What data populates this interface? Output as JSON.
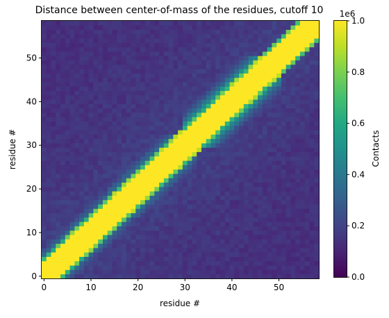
{
  "chart_data": {
    "type": "heatmap",
    "title": "Distance between center-of-mass of the residues, cutoff 10",
    "xlabel": "residue #",
    "ylabel": "residue #",
    "n_residues": 59,
    "xlim": [
      -0.5,
      58.5
    ],
    "ylim": [
      -0.5,
      58.5
    ],
    "x_ticks": [
      0,
      10,
      20,
      30,
      40,
      50
    ],
    "y_ticks": [
      0,
      10,
      20,
      30,
      40,
      50
    ],
    "x_tick_labels": [
      "0",
      "10",
      "20",
      "30",
      "40",
      "50"
    ],
    "y_tick_labels": [
      "0",
      "10",
      "20",
      "30",
      "40",
      "50"
    ],
    "colormap": "viridis",
    "colorbar": {
      "label": "Contacts",
      "range": [
        0.0,
        1.0
      ],
      "ticks": [
        0.0,
        0.2,
        0.4,
        0.6,
        0.8,
        1.0
      ],
      "tick_labels": [
        "0.0",
        "0.2",
        "0.4",
        "0.6",
        "0.8",
        "1.0"
      ],
      "offset_text": "1e6"
    },
    "diagonal_band_halfwidth": 3,
    "secondary_contact_regions": [
      {
        "i_range": [
          30,
          46
        ],
        "j_range": [
          32,
          50
        ],
        "level": 0.75
      },
      {
        "i_range": [
          14,
          28
        ],
        "j_range": [
          18,
          32
        ],
        "level": 0.55
      },
      {
        "i_range": [
          0,
          14
        ],
        "j_range": [
          4,
          20
        ],
        "level": 0.5
      }
    ],
    "background_level": 0.1
  }
}
